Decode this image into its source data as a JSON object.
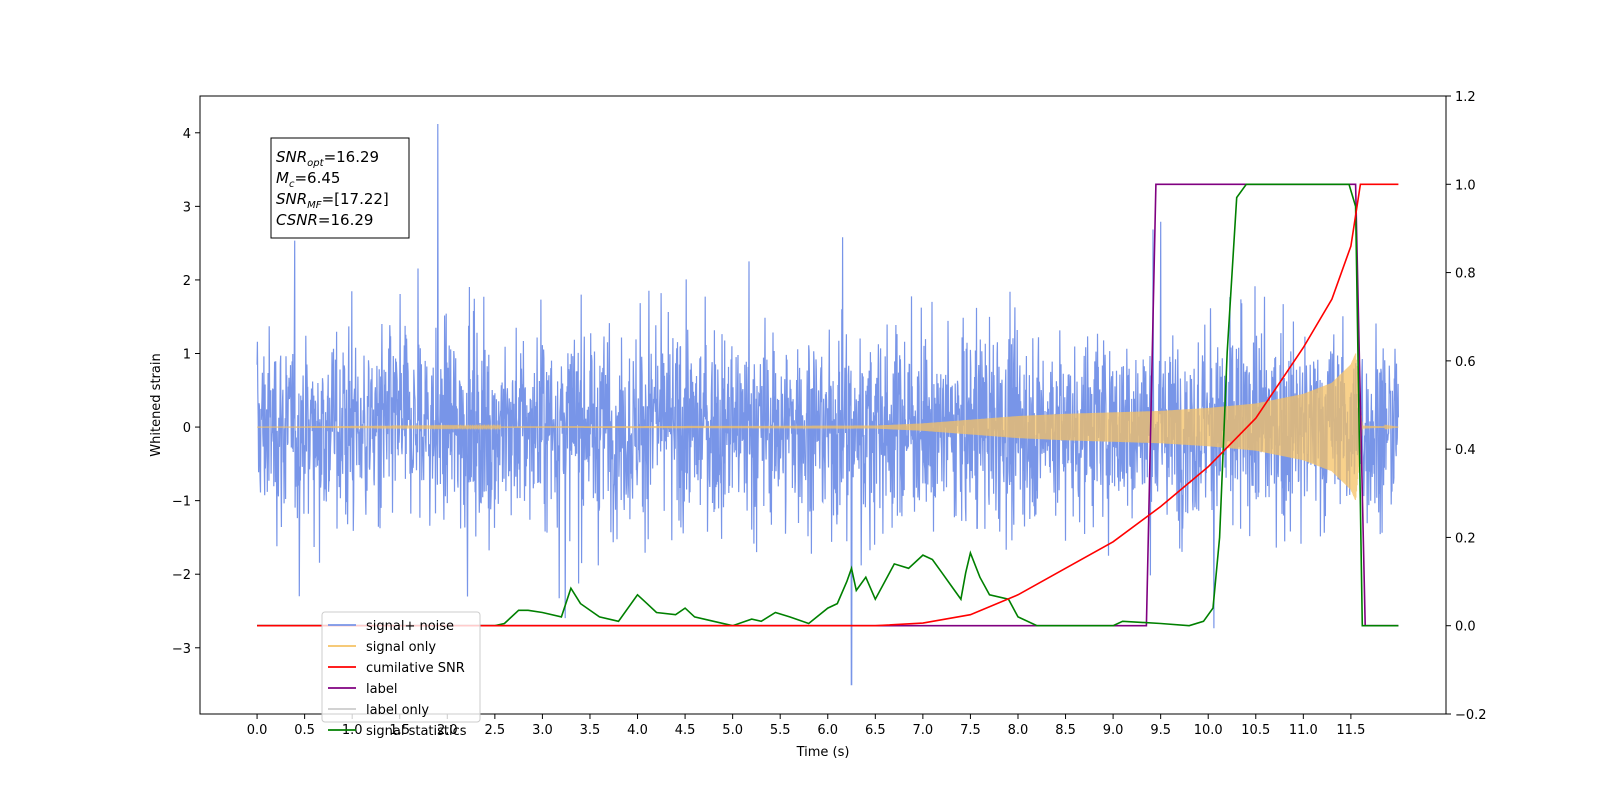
{
  "chart_data": {
    "type": "line",
    "xlabel": "Time (s)",
    "ylabel": "Whitened strain",
    "xlim": [
      -0.6,
      12.5
    ],
    "ylim": [
      -3.9,
      4.5
    ],
    "y2lim": [
      -0.2,
      1.2
    ],
    "x_ticks": [
      "0.0",
      "0.5",
      "1.0",
      "1.5",
      "2.0",
      "2.5",
      "3.0",
      "3.5",
      "4.0",
      "4.5",
      "5.0",
      "5.5",
      "6.0",
      "6.5",
      "7.0",
      "7.5",
      "8.0",
      "8.5",
      "9.0",
      "9.5",
      "10.0",
      "10.5",
      "11.0",
      "11.5"
    ],
    "y_ticks": [
      "4",
      "3",
      "2",
      "1",
      "0",
      "−1",
      "−2",
      "−3"
    ],
    "y2_ticks": [
      "1.2",
      "1.0",
      "0.8",
      "0.6",
      "0.4",
      "0.2",
      "0.0",
      "−0.2"
    ],
    "grid": false,
    "legend_position": "lower-left",
    "info_box": {
      "snr_opt": "=16.29",
      "mc": "=6.45",
      "snr_mf": "=[17.22]",
      "csnr": "=16.29"
    },
    "series": [
      {
        "name": "signal+ noise",
        "color": "#7895e8",
        "axis": "left",
        "description": "noisy whitened strain, roughly +/-1.5 with spikes up to 4.1 (at t=1.9) and down to -3.5 (at t=6.25)",
        "x_range": [
          0.0,
          12.0
        ],
        "peak_values": {
          "max": 4.12,
          "min": -3.5
        }
      },
      {
        "name": "signal only",
        "color": "#f5c264",
        "axis": "left",
        "description": "chirp signal, amplitude near 0 until ~7s, growing to ~+/-1.0 at ~11.55s, then 0",
        "envelope": {
          "x": [
            0.0,
            6.5,
            7.0,
            7.5,
            8.0,
            8.5,
            9.0,
            9.5,
            10.0,
            10.5,
            11.0,
            11.3,
            11.5,
            11.55,
            11.62,
            12.0
          ],
          "amp": [
            0.0,
            0.02,
            0.05,
            0.1,
            0.15,
            0.18,
            0.2,
            0.22,
            0.26,
            0.32,
            0.45,
            0.6,
            0.85,
            1.0,
            0.02,
            0.0
          ]
        }
      },
      {
        "name": "cumilative SNR",
        "color": "#ff0000",
        "axis": "right",
        "x": [
          0.0,
          6.5,
          7.0,
          7.5,
          8.0,
          8.5,
          9.0,
          9.5,
          10.0,
          10.5,
          11.0,
          11.3,
          11.5,
          11.6,
          11.75,
          12.0
        ],
        "values": [
          0.0,
          0.0,
          0.006,
          0.025,
          0.07,
          0.13,
          0.19,
          0.27,
          0.36,
          0.47,
          0.63,
          0.74,
          0.86,
          1.0,
          1.0,
          1.0
        ]
      },
      {
        "name": "label",
        "color": "#800080",
        "axis": "right",
        "x": [
          0.0,
          9.35,
          9.45,
          11.55,
          11.65,
          12.0
        ],
        "values": [
          0.0,
          0.0,
          1.0,
          1.0,
          0.0,
          0.0
        ]
      },
      {
        "name": "label only",
        "color": "#cccccc",
        "axis": "right",
        "x": [],
        "values": []
      },
      {
        "name": "signal statistics",
        "color": "#008000",
        "axis": "right",
        "x": [
          0.0,
          2.5,
          2.6,
          2.75,
          2.85,
          3.0,
          3.2,
          3.3,
          3.4,
          3.6,
          3.8,
          4.0,
          4.1,
          4.2,
          4.4,
          4.5,
          4.6,
          4.8,
          5.0,
          5.2,
          5.3,
          5.45,
          5.6,
          5.8,
          6.0,
          6.1,
          6.2,
          6.25,
          6.3,
          6.4,
          6.5,
          6.6,
          6.7,
          6.85,
          7.0,
          7.1,
          7.2,
          7.3,
          7.4,
          7.45,
          7.5,
          7.6,
          7.7,
          7.9,
          8.0,
          8.2,
          8.5,
          9.0,
          9.1,
          9.5,
          9.8,
          9.95,
          10.05,
          10.12,
          10.2,
          10.3,
          10.4,
          10.5,
          11.0,
          11.48,
          11.55,
          11.62,
          12.0
        ],
        "values": [
          0.0,
          0.0,
          0.005,
          0.035,
          0.035,
          0.03,
          0.02,
          0.085,
          0.05,
          0.02,
          0.01,
          0.07,
          0.05,
          0.03,
          0.025,
          0.04,
          0.02,
          0.01,
          0.0,
          0.015,
          0.01,
          0.03,
          0.02,
          0.005,
          0.04,
          0.05,
          0.1,
          0.13,
          0.08,
          0.11,
          0.06,
          0.1,
          0.14,
          0.13,
          0.16,
          0.15,
          0.12,
          0.09,
          0.06,
          0.12,
          0.165,
          0.11,
          0.07,
          0.06,
          0.02,
          0.0,
          0.0,
          0.0,
          0.01,
          0.005,
          0.0,
          0.01,
          0.04,
          0.2,
          0.62,
          0.97,
          1.0,
          1.0,
          1.0,
          1.0,
          0.95,
          0.0,
          0.0
        ]
      }
    ]
  }
}
